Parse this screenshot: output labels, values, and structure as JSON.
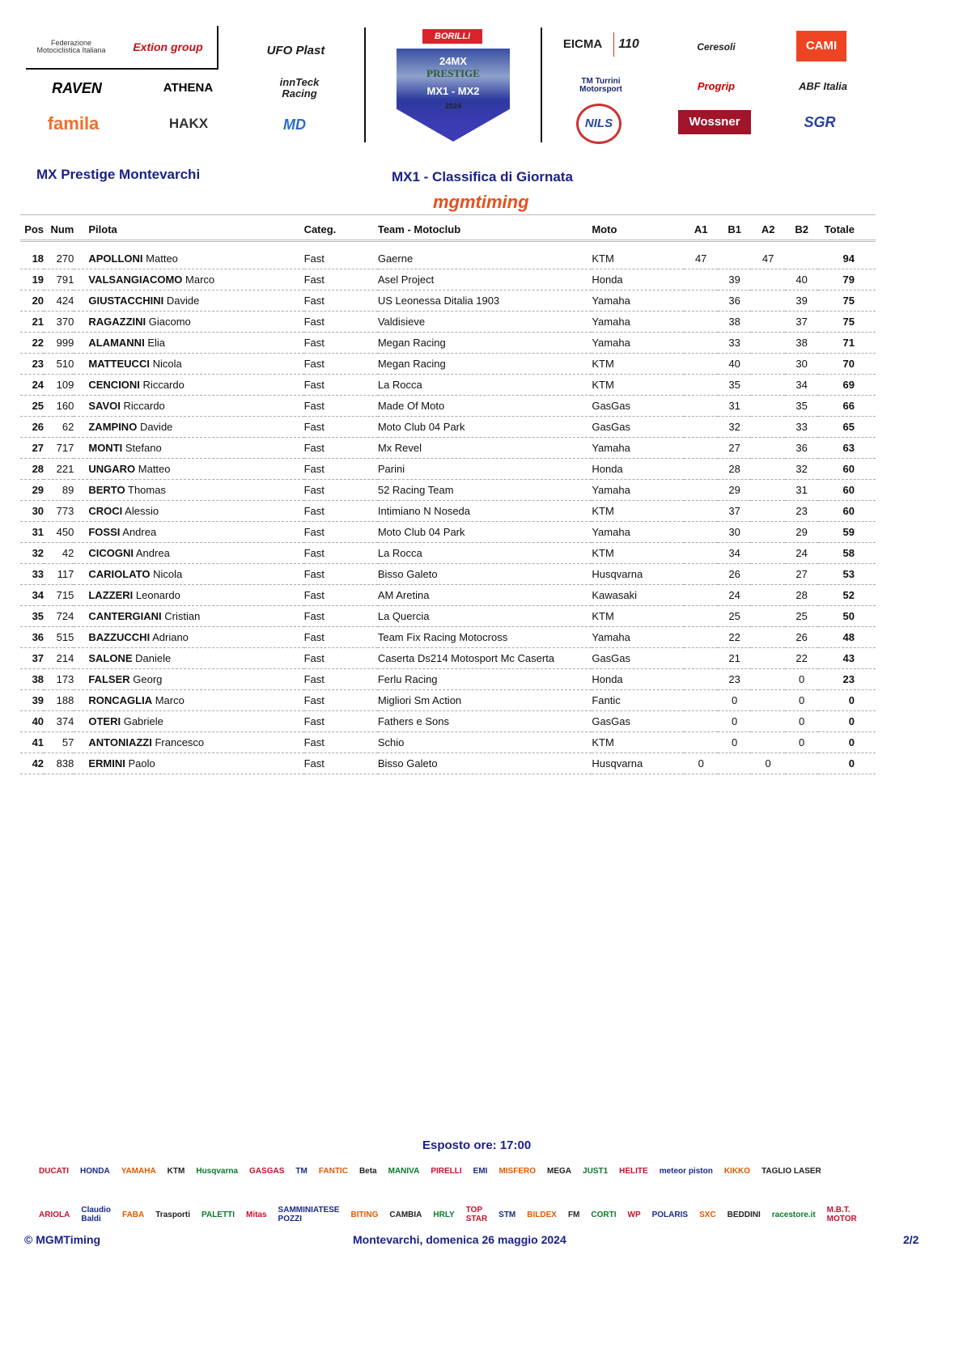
{
  "header_logos": {
    "left": [
      "Federazione Motociclistica Italiana",
      "Extion group",
      "UFO Plast",
      "RAVEN",
      "ATHENA",
      "innTeck Racing",
      "famila",
      "HAKX",
      "MD"
    ],
    "center": [
      "BORILLI",
      "24MX",
      "PRESTIGE",
      "MX1 - MX2",
      "2024"
    ],
    "right": [
      "EICMA",
      "110",
      "Ceresoli",
      "CAMI",
      "TM Turrini Motorsport",
      "Progrip",
      "ABF Italia",
      "NILS",
      "Wossner",
      "SGR"
    ]
  },
  "event_title": "MX Prestige Montevarchi",
  "report_title": "MX1 - Classifica di Giornata",
  "timing_logo": "mgmtiming",
  "table": {
    "headers": [
      "Pos",
      "Num",
      "Pilota",
      "Categ.",
      "Team - Motoclub",
      "Moto",
      "A1",
      "B1",
      "A2",
      "B2",
      "Totale"
    ],
    "rows": [
      {
        "pos": "18",
        "num": "270",
        "surname": "APOLLONI",
        "name": "Matteo",
        "cat": "Fast",
        "team": "Gaerne",
        "moto": "KTM",
        "a1": "47",
        "b1": "",
        "a2": "47",
        "b2": "",
        "tot": "94"
      },
      {
        "pos": "19",
        "num": "791",
        "surname": "VALSANGIACOMO",
        "name": "Marco",
        "cat": "Fast",
        "team": "Asel Project",
        "moto": "Honda",
        "a1": "",
        "b1": "39",
        "a2": "",
        "b2": "40",
        "tot": "79"
      },
      {
        "pos": "20",
        "num": "424",
        "surname": "GIUSTACCHINI",
        "name": "Davide",
        "cat": "Fast",
        "team": "US Leonessa Ditalia 1903",
        "moto": "Yamaha",
        "a1": "",
        "b1": "36",
        "a2": "",
        "b2": "39",
        "tot": "75"
      },
      {
        "pos": "21",
        "num": "370",
        "surname": "RAGAZZINI",
        "name": "Giacomo",
        "cat": "Fast",
        "team": "Valdisieve",
        "moto": "Yamaha",
        "a1": "",
        "b1": "38",
        "a2": "",
        "b2": "37",
        "tot": "75"
      },
      {
        "pos": "22",
        "num": "999",
        "surname": "ALAMANNI",
        "name": "Elia",
        "cat": "Fast",
        "team": "Megan Racing",
        "moto": "Yamaha",
        "a1": "",
        "b1": "33",
        "a2": "",
        "b2": "38",
        "tot": "71"
      },
      {
        "pos": "23",
        "num": "510",
        "surname": "MATTEUCCI",
        "name": "Nicola",
        "cat": "Fast",
        "team": "Megan Racing",
        "moto": "KTM",
        "a1": "",
        "b1": "40",
        "a2": "",
        "b2": "30",
        "tot": "70"
      },
      {
        "pos": "24",
        "num": "109",
        "surname": "CENCIONI",
        "name": "Riccardo",
        "cat": "Fast",
        "team": "La Rocca",
        "moto": "KTM",
        "a1": "",
        "b1": "35",
        "a2": "",
        "b2": "34",
        "tot": "69"
      },
      {
        "pos": "25",
        "num": "160",
        "surname": "SAVOI",
        "name": "Riccardo",
        "cat": "Fast",
        "team": "Made Of Moto",
        "moto": "GasGas",
        "a1": "",
        "b1": "31",
        "a2": "",
        "b2": "35",
        "tot": "66"
      },
      {
        "pos": "26",
        "num": "62",
        "surname": "ZAMPINO",
        "name": "Davide",
        "cat": "Fast",
        "team": "Moto Club 04 Park",
        "moto": "GasGas",
        "a1": "",
        "b1": "32",
        "a2": "",
        "b2": "33",
        "tot": "65"
      },
      {
        "pos": "27",
        "num": "717",
        "surname": "MONTI",
        "name": "Stefano",
        "cat": "Fast",
        "team": "Mx Revel",
        "moto": "Yamaha",
        "a1": "",
        "b1": "27",
        "a2": "",
        "b2": "36",
        "tot": "63"
      },
      {
        "pos": "28",
        "num": "221",
        "surname": "UNGARO",
        "name": "Matteo",
        "cat": "Fast",
        "team": "Parini",
        "moto": "Honda",
        "a1": "",
        "b1": "28",
        "a2": "",
        "b2": "32",
        "tot": "60"
      },
      {
        "pos": "29",
        "num": "89",
        "surname": "BERTO",
        "name": "Thomas",
        "cat": "Fast",
        "team": "52 Racing Team",
        "moto": "Yamaha",
        "a1": "",
        "b1": "29",
        "a2": "",
        "b2": "31",
        "tot": "60"
      },
      {
        "pos": "30",
        "num": "773",
        "surname": "CROCI",
        "name": "Alessio",
        "cat": "Fast",
        "team": "Intimiano N Noseda",
        "moto": "KTM",
        "a1": "",
        "b1": "37",
        "a2": "",
        "b2": "23",
        "tot": "60"
      },
      {
        "pos": "31",
        "num": "450",
        "surname": "FOSSI",
        "name": "Andrea",
        "cat": "Fast",
        "team": "Moto Club 04 Park",
        "moto": "Yamaha",
        "a1": "",
        "b1": "30",
        "a2": "",
        "b2": "29",
        "tot": "59"
      },
      {
        "pos": "32",
        "num": "42",
        "surname": "CICOGNI",
        "name": "Andrea",
        "cat": "Fast",
        "team": "La Rocca",
        "moto": "KTM",
        "a1": "",
        "b1": "34",
        "a2": "",
        "b2": "24",
        "tot": "58"
      },
      {
        "pos": "33",
        "num": "117",
        "surname": "CARIOLATO",
        "name": "Nicola",
        "cat": "Fast",
        "team": "Bisso Galeto",
        "moto": "Husqvarna",
        "a1": "",
        "b1": "26",
        "a2": "",
        "b2": "27",
        "tot": "53"
      },
      {
        "pos": "34",
        "num": "715",
        "surname": "LAZZERI",
        "name": "Leonardo",
        "cat": "Fast",
        "team": "AM Aretina",
        "moto": "Kawasaki",
        "a1": "",
        "b1": "24",
        "a2": "",
        "b2": "28",
        "tot": "52"
      },
      {
        "pos": "35",
        "num": "724",
        "surname": "CANTERGIANI",
        "name": "Cristian",
        "cat": "Fast",
        "team": "La Quercia",
        "moto": "KTM",
        "a1": "",
        "b1": "25",
        "a2": "",
        "b2": "25",
        "tot": "50"
      },
      {
        "pos": "36",
        "num": "515",
        "surname": "BAZZUCCHI",
        "name": "Adriano",
        "cat": "Fast",
        "team": "Team Fix Racing Motocross",
        "moto": "Yamaha",
        "a1": "",
        "b1": "22",
        "a2": "",
        "b2": "26",
        "tot": "48"
      },
      {
        "pos": "37",
        "num": "214",
        "surname": "SALONE",
        "name": "Daniele",
        "cat": "Fast",
        "team": "Caserta Ds214 Motosport Mc Caserta",
        "moto": "GasGas",
        "a1": "",
        "b1": "21",
        "a2": "",
        "b2": "22",
        "tot": "43"
      },
      {
        "pos": "38",
        "num": "173",
        "surname": "FALSER",
        "name": "Georg",
        "cat": "Fast",
        "team": "Ferlu Racing",
        "moto": "Honda",
        "a1": "",
        "b1": "23",
        "a2": "",
        "b2": "0",
        "tot": "23"
      },
      {
        "pos": "39",
        "num": "188",
        "surname": "RONCAGLIA",
        "name": "Marco",
        "cat": "Fast",
        "team": "Migliori Sm Action",
        "moto": "Fantic",
        "a1": "",
        "b1": "0",
        "a2": "",
        "b2": "0",
        "tot": "0"
      },
      {
        "pos": "40",
        "num": "374",
        "surname": "OTERI",
        "name": "Gabriele",
        "cat": "Fast",
        "team": "Fathers e Sons",
        "moto": "GasGas",
        "a1": "",
        "b1": "0",
        "a2": "",
        "b2": "0",
        "tot": "0"
      },
      {
        "pos": "41",
        "num": "57",
        "surname": "ANTONIAZZI",
        "name": "Francesco",
        "cat": "Fast",
        "team": "Schio",
        "moto": "KTM",
        "a1": "",
        "b1": "0",
        "a2": "",
        "b2": "0",
        "tot": "0"
      },
      {
        "pos": "42",
        "num": "838",
        "surname": "ERMINI",
        "name": "Paolo",
        "cat": "Fast",
        "team": "Bisso Galeto",
        "moto": "Husqvarna",
        "a1": "0",
        "b1": "",
        "a2": "0",
        "b2": "",
        "tot": "0"
      }
    ]
  },
  "exposed": "Esposto ore: 17:00",
  "sponsor_row1": [
    "DUCATI",
    "HONDA",
    "YAMAHA",
    "KTM",
    "Husqvarna",
    "GASGAS",
    "TM",
    "FANTIC",
    "Beta",
    "MANIVA",
    "PIRELLI",
    "EMI",
    "MISFERO",
    "MEGA",
    "JUST1",
    "HELITE",
    "meteor piston",
    "KIKKO",
    "TAGLIO LASER"
  ],
  "sponsor_row2": [
    "ARIOLA",
    "Claudio Baldi",
    "FABA",
    "Trasporti",
    "PALETTI",
    "Mitas",
    "SAMMINIATESE POZZI",
    "BITING",
    "CAMBIA",
    "HRLY",
    "TOP STAR",
    "STM",
    "BILDEX",
    "FM",
    "CORTI",
    "WP",
    "POLARIS",
    "SXC",
    "BEDDINI",
    "racestore.it",
    "M.B.T. MOTOR"
  ],
  "footer": {
    "copyright": "© MGMTiming",
    "place_date": "Montevarchi, domenica 26 maggio 2024",
    "page": "2/2"
  },
  "colors": {
    "title_navy": "#1a1f8a",
    "timing_orange": "#e8501c"
  }
}
